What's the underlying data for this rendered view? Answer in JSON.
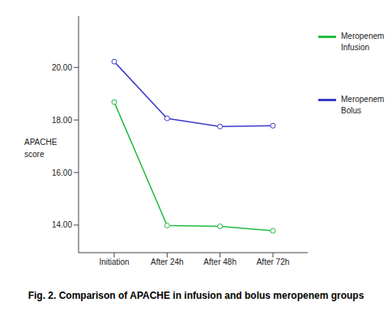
{
  "chart_data": {
    "type": "line",
    "title": "Fig. 2. Comparison of APACHE in infusion and bolus meropenem groups",
    "y_label": "APACHE score",
    "categories": [
      "Initiation",
      "After 24h",
      "After 48h",
      "After 72h"
    ],
    "series": [
      {
        "name": "Meropenem Infusion",
        "color": "#22bb44",
        "values": [
          18.68,
          13.98,
          13.95,
          13.78
        ]
      },
      {
        "name": "Meropenem Bolus",
        "color": "#3c3ccc",
        "values": [
          20.22,
          18.06,
          17.75,
          17.78
        ]
      }
    ],
    "ylim": [
      12.95,
      21.95
    ],
    "yticks": [
      {
        "value": 14,
        "label": "14.00"
      },
      {
        "value": 16,
        "label": "16.00"
      },
      {
        "value": 18,
        "label": "18.00"
      },
      {
        "value": 20,
        "label": "20.00"
      }
    ],
    "marker": "circle",
    "line_style": "solid",
    "legend": "right",
    "grid": false
  }
}
